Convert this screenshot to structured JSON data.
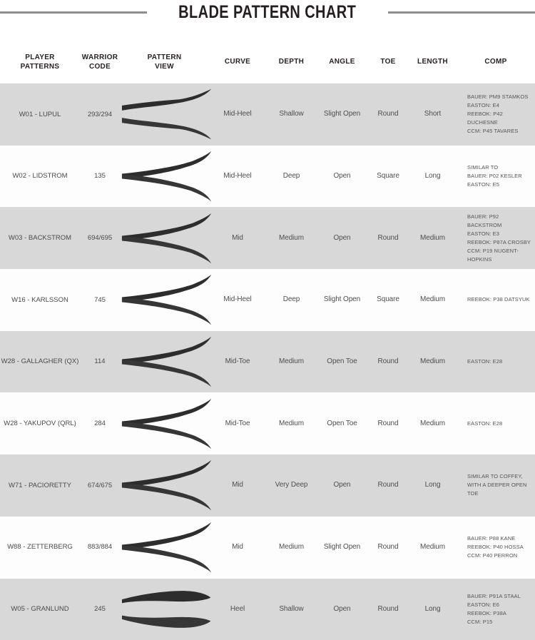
{
  "title": "BLADE PATTERN CHART",
  "colors": {
    "row_shade": "#d8d8d8",
    "row_plain": "#fdfdfd",
    "title_text": "#231f20",
    "body_text": "#4e4e4e",
    "rule": "#8d8d8d",
    "blade": "#2d2d2d"
  },
  "chart_data": {
    "type": "table",
    "title": "BLADE PATTERN CHART",
    "columns": [
      "PLAYER\nPATTERNS",
      "WARRIOR\nCODE",
      "PATTERN\nVIEW",
      "CURVE",
      "DEPTH",
      "ANGLE",
      "TOE",
      "LENGTH",
      "COMP"
    ],
    "rows": [
      {
        "player": "W01 - LUPUL",
        "code": "293/294",
        "pattern_variant": "shallow",
        "curve": "Mid-Heel",
        "depth": "Shallow",
        "angle": "Slight Open",
        "toe": "Round",
        "length": "Short",
        "comp": [
          "BAUER: PM9 STAMKOS",
          "EASTON: E4",
          "REEBOK: P42 DUCHESNE",
          "CCM: P45 TAVARES"
        ]
      },
      {
        "player": "W02 - LIDSTROM",
        "code": "135",
        "pattern_variant": "diverge",
        "curve": "Mid-Heel",
        "depth": "Deep",
        "angle": "Open",
        "toe": "Square",
        "length": "Long",
        "comp": [
          "SIMILAR TO",
          "BAUER: P02 KESLER",
          "EASTON: E5"
        ]
      },
      {
        "player": "W03 - BACKSTROM",
        "code": "694/695",
        "pattern_variant": "diverge",
        "curve": "Mid",
        "depth": "Medium",
        "angle": "Open",
        "toe": "Round",
        "length": "Medium",
        "comp": [
          "BAUER: P92 BACKSTROM",
          "EASTON: E3",
          "REEBOK: P87A CROSBY",
          "CCM: P19 NUGENT-HOPKINS"
        ]
      },
      {
        "player": "W16 - KARLSSON",
        "code": "745",
        "pattern_variant": "diverge",
        "curve": "Mid-Heel",
        "depth": "Deep",
        "angle": "Slight Open",
        "toe": "Square",
        "length": "Medium",
        "comp": [
          "REEBOK: P38 DATSYUK"
        ]
      },
      {
        "player": "W28 - GALLAGHER (QX)",
        "code": "114",
        "pattern_variant": "diverge",
        "curve": "Mid-Toe",
        "depth": "Medium",
        "angle": "Open Toe",
        "toe": "Round",
        "length": "Medium",
        "comp": [
          "EASTON: E28"
        ]
      },
      {
        "player": "W28 - YAKUPOV (QRL)",
        "code": "284",
        "pattern_variant": "diverge",
        "curve": "Mid-Toe",
        "depth": "Medium",
        "angle": "Open Toe",
        "toe": "Round",
        "length": "Medium",
        "comp": [
          "EASTON: E28"
        ]
      },
      {
        "player": "W71 - PACIORETTY",
        "code": "674/675",
        "pattern_variant": "diverge",
        "curve": "Mid",
        "depth": "Very Deep",
        "angle": "Open",
        "toe": "Round",
        "length": "Long",
        "comp": [
          "SIMILAR TO COFFEY,",
          "WITH A DEEPER OPEN TOE"
        ]
      },
      {
        "player": "W88 - ZETTERBERG",
        "code": "883/884",
        "pattern_variant": "diverge",
        "curve": "Mid",
        "depth": "Medium",
        "angle": "Slight Open",
        "toe": "Round",
        "length": "Medium",
        "comp": [
          "BAUER: P88 KANE",
          "REEBOK: P40 HOSSA",
          "CCM: P40 PERRON"
        ]
      },
      {
        "player": "W05 - GRANLUND",
        "code": "245",
        "pattern_variant": "heel",
        "curve": "Heel",
        "depth": "Shallow",
        "angle": "Open",
        "toe": "Round",
        "length": "Long",
        "comp": [
          "BAUER: P91A STAAL",
          "EASTON: E6",
          "REEBOK: P38A",
          "CCM: P15"
        ]
      }
    ]
  }
}
